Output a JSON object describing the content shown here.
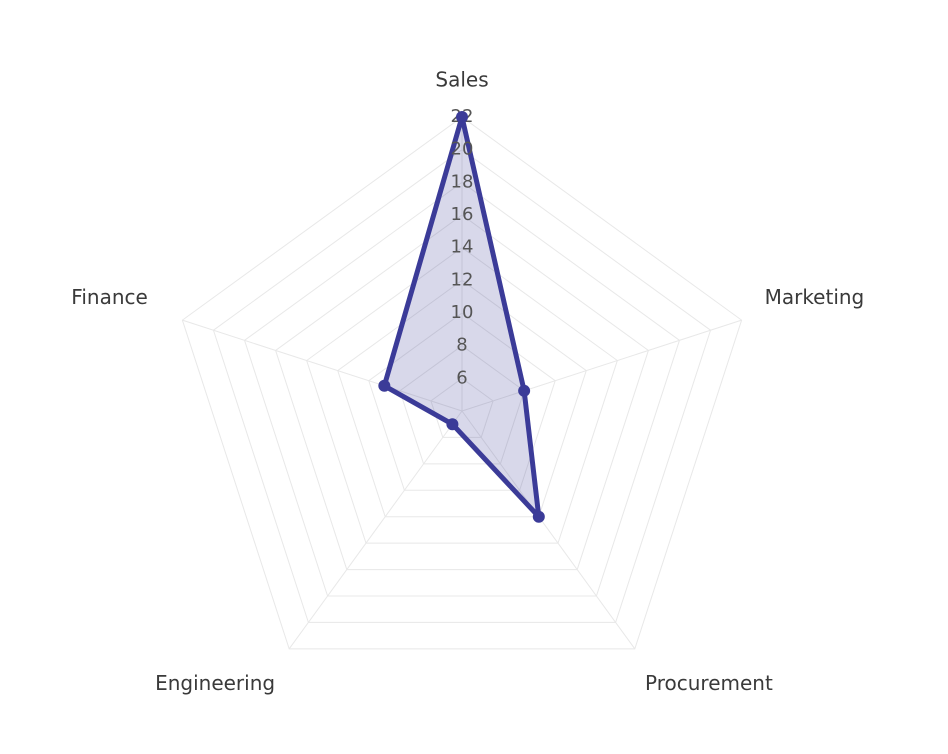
{
  "chart_data": {
    "type": "radar",
    "categories": [
      "Sales",
      "Marketing",
      "Procurement",
      "Engineering",
      "Finance"
    ],
    "values": [
      22,
      8,
      12,
      5,
      9
    ],
    "color": "#3b3b98",
    "ylim": [
      4,
      22
    ],
    "yticks": [
      6,
      8,
      10,
      12,
      14,
      16,
      18,
      20,
      22
    ],
    "grid": true
  }
}
